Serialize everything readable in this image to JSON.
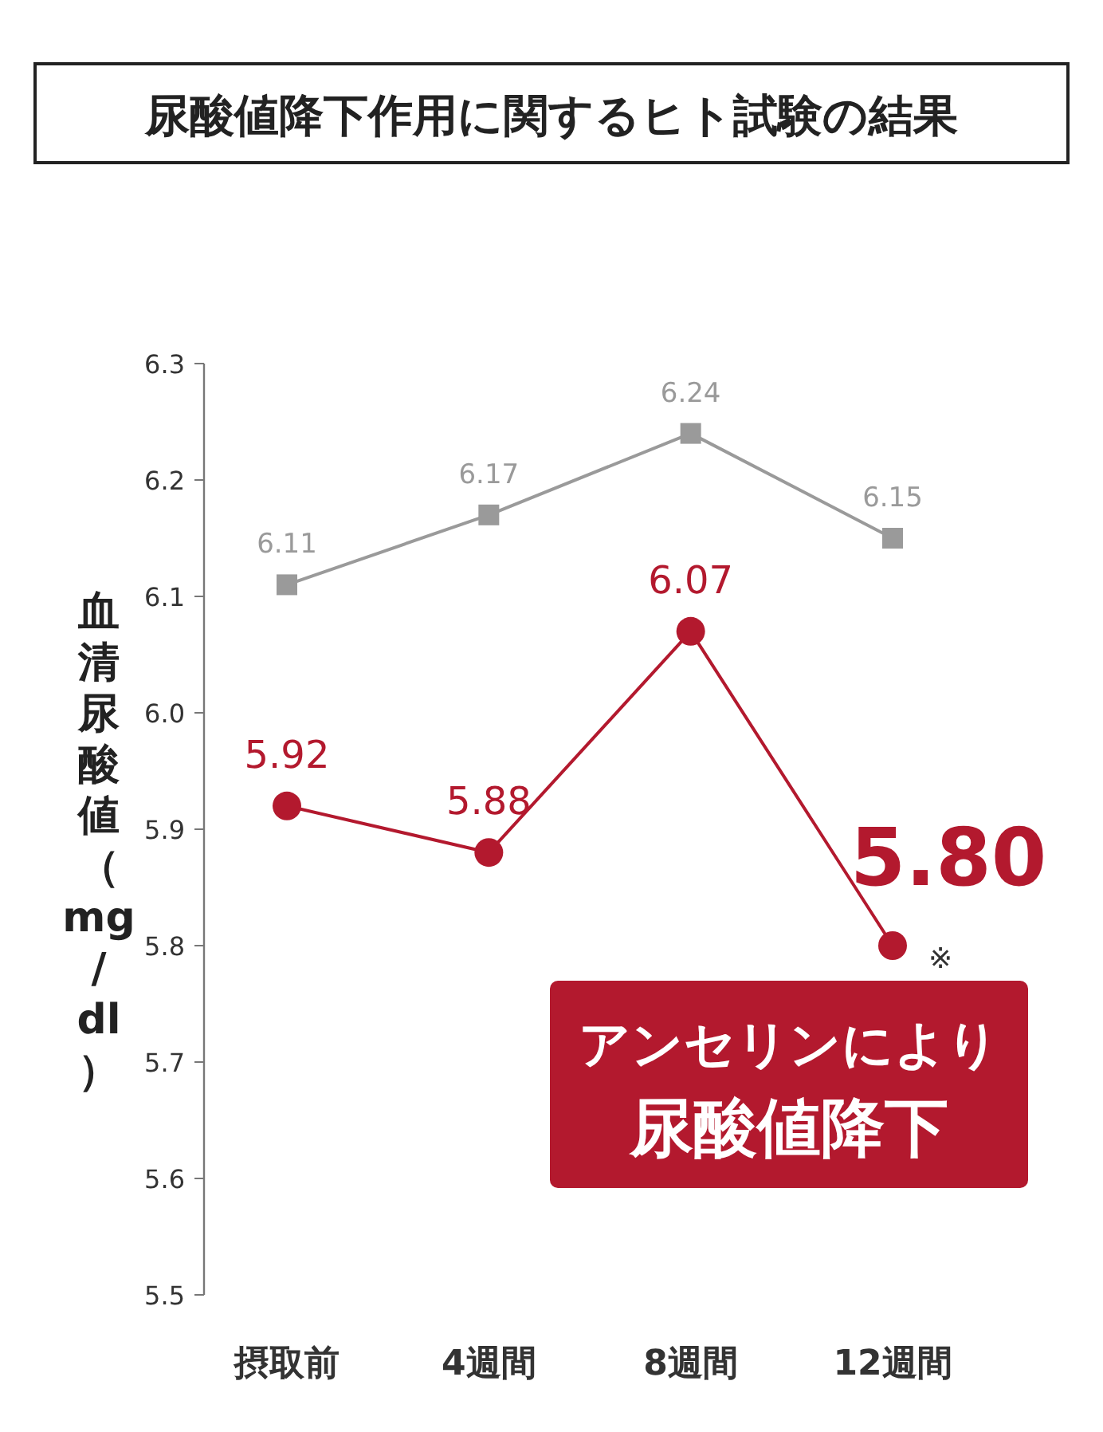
{
  "chart_data": {
    "type": "line",
    "title": "尿酸値降下作用に関するヒト試験の結果",
    "ylabel": "血清尿酸値（mg/dl）",
    "categories": [
      "摂取前",
      "4週間",
      "8週間",
      "12週間"
    ],
    "series": [
      {
        "color": "#9a9a9a",
        "values": [
          6.11,
          6.17,
          6.24,
          6.15
        ],
        "value_labels": [
          "6.11",
          "6.17",
          "6.24",
          "6.15"
        ],
        "marker": "square"
      },
      {
        "color": "#b3192e",
        "values": [
          5.92,
          5.88,
          6.07,
          5.8
        ],
        "value_labels": [
          "5.92",
          "5.88",
          "6.07",
          "5.80"
        ],
        "marker": "circle"
      }
    ],
    "ylim": [
      5.5,
      6.3
    ],
    "yticks": [
      5.5,
      5.6,
      5.7,
      5.8,
      5.9,
      {
        "value": 6.0,
        "label": "6.0"
      },
      6.1,
      6.2,
      6.3
    ],
    "grid": false,
    "annotations": [
      {
        "text": "※",
        "x": "12週間",
        "y": 5.8
      },
      "アンセリンにより",
      "尿酸値降下"
    ]
  }
}
